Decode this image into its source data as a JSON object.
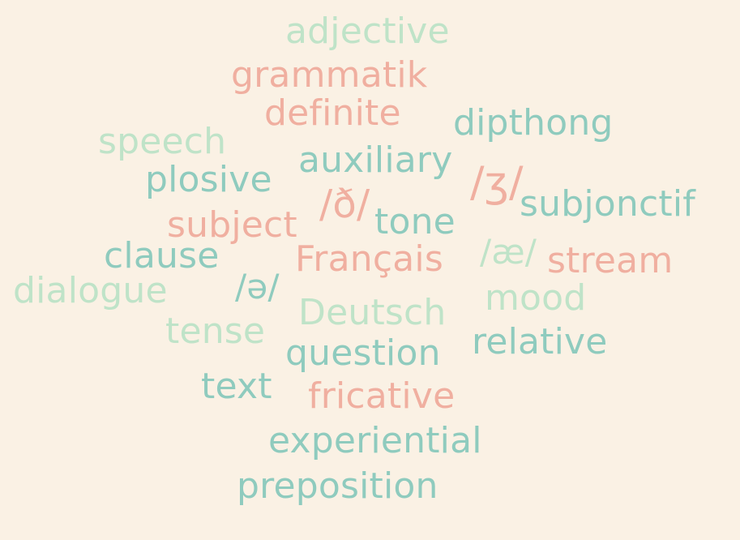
{
  "palette": {
    "background": "#FAF1E4",
    "teal": "#8FCBBE",
    "mint": "#BFE3C8",
    "salmon": "#F0AFA0"
  },
  "words": [
    {
      "id": "adjective",
      "text": "adjective",
      "color": "#BFE3C8"
    },
    {
      "id": "grammatik",
      "text": "grammatik",
      "color": "#F0AFA0"
    },
    {
      "id": "definite",
      "text": "definite",
      "color": "#F0AFA0"
    },
    {
      "id": "dipthong",
      "text": "dipthong",
      "color": "#8FCBBE"
    },
    {
      "id": "speech",
      "text": "speech",
      "color": "#BFE3C8"
    },
    {
      "id": "auxiliary",
      "text": "auxiliary",
      "color": "#8FCBBE"
    },
    {
      "id": "plosive",
      "text": "plosive",
      "color": "#8FCBBE"
    },
    {
      "id": "zh",
      "text": "/ʒ/",
      "color": "#F0AFA0"
    },
    {
      "id": "eth",
      "text": "/ð/",
      "color": "#F0AFA0"
    },
    {
      "id": "subjonctif",
      "text": "subjonctif",
      "color": "#8FCBBE"
    },
    {
      "id": "tone",
      "text": "tone",
      "color": "#8FCBBE"
    },
    {
      "id": "subject",
      "text": "subject",
      "color": "#F0AFA0"
    },
    {
      "id": "ae",
      "text": "/æ/",
      "color": "#BFE3C8"
    },
    {
      "id": "clause",
      "text": "clause",
      "color": "#8FCBBE"
    },
    {
      "id": "francais",
      "text": "Français",
      "color": "#F0AFA0"
    },
    {
      "id": "stream",
      "text": "stream",
      "color": "#F0AFA0"
    },
    {
      "id": "schwa",
      "text": "/ə/",
      "color": "#8FCBBE"
    },
    {
      "id": "dialogue",
      "text": "dialogue",
      "color": "#BFE3C8"
    },
    {
      "id": "mood",
      "text": "mood",
      "color": "#BFE3C8"
    },
    {
      "id": "deutsch",
      "text": "Deutsch",
      "color": "#BFE3C8"
    },
    {
      "id": "tense",
      "text": "tense",
      "color": "#BFE3C8"
    },
    {
      "id": "relative",
      "text": "relative",
      "color": "#8FCBBE"
    },
    {
      "id": "question",
      "text": "question",
      "color": "#8FCBBE"
    },
    {
      "id": "text",
      "text": "text",
      "color": "#8FCBBE"
    },
    {
      "id": "fricative",
      "text": "fricative",
      "color": "#F0AFA0"
    },
    {
      "id": "experiential",
      "text": "experiential",
      "color": "#8FCBBE"
    },
    {
      "id": "preposition",
      "text": "preposition",
      "color": "#8FCBBE"
    }
  ]
}
